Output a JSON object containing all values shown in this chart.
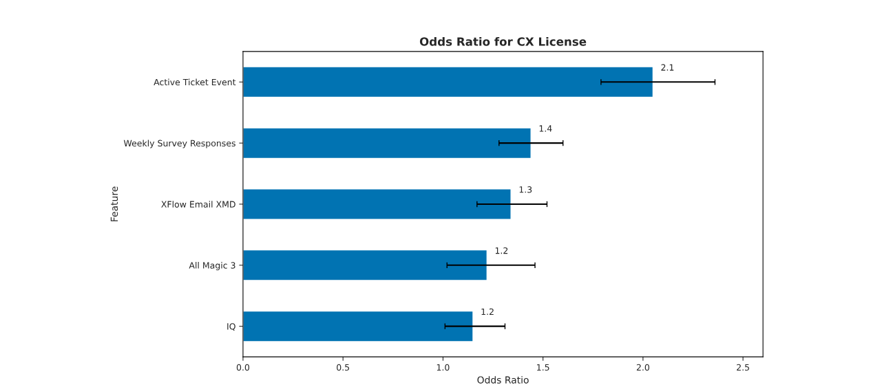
{
  "chart_data": {
    "type": "bar",
    "orientation": "horizontal",
    "title": "Odds Ratio for CX License",
    "xlabel": "Odds Ratio",
    "ylabel": "Feature",
    "categories": [
      "Active Ticket Event",
      "Weekly Survey Responses",
      "XFlow Email XMD",
      "All Magic 3",
      "IQ"
    ],
    "values": [
      2.05,
      1.44,
      1.34,
      1.22,
      1.15
    ],
    "errors": [
      [
        1.79,
        2.36
      ],
      [
        1.28,
        1.6
      ],
      [
        1.17,
        1.52
      ],
      [
        1.02,
        1.46
      ],
      [
        1.01,
        1.31
      ]
    ],
    "value_labels": [
      "2.1",
      "1.4",
      "1.3",
      "1.2",
      "1.2"
    ],
    "color": "#0173b2",
    "xlim": [
      0,
      2.6
    ],
    "xticks": [
      {
        "value": 0,
        "label": "0.0"
      },
      {
        "value": 0.5,
        "label": "0.5"
      },
      {
        "value": 1,
        "label": "1.0"
      },
      {
        "value": 1.5,
        "label": "1.5"
      },
      {
        "value": 2,
        "label": "2.0"
      },
      {
        "value": 2.5,
        "label": "2.5"
      }
    ],
    "grid": false
  }
}
